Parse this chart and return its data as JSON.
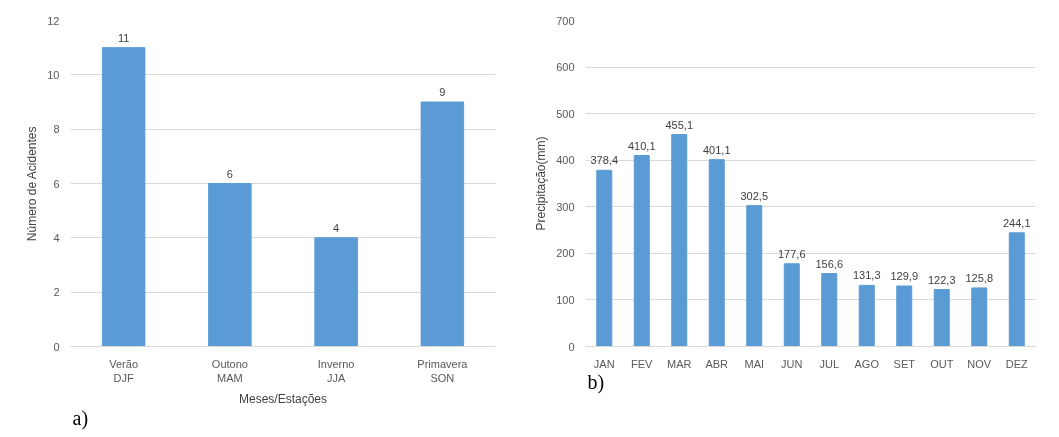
{
  "chart_data": [
    {
      "type": "bar",
      "categories": [
        "Verão\nDJF",
        "Outono\nMAM",
        "Inverno\nJJA",
        "Primavera\nSON"
      ],
      "values": [
        11,
        6,
        4,
        9
      ],
      "color": "#5b9bd5",
      "xlabel": "Meses/Estações",
      "ylabel": "Número de Acidentes",
      "ylim": [
        0,
        12
      ],
      "yticks": [
        0,
        2,
        4,
        6,
        8,
        10,
        12
      ],
      "grid": "y",
      "data_labels": true,
      "annotations": [
        "a)"
      ]
    },
    {
      "type": "bar",
      "categories": [
        "JAN",
        "FEV",
        "MAR",
        "ABR",
        "MAI",
        "JUN",
        "JUL",
        "AGO",
        "SET",
        "OUT",
        "NOV",
        "DEZ"
      ],
      "values": [
        378.4,
        410.1,
        455.1,
        401.1,
        302.5,
        177.6,
        156.6,
        131.3,
        129.9,
        122.3,
        125.8,
        244.1
      ],
      "value_labels": [
        "378,4",
        "410,1",
        "455,1",
        "401,1",
        "302,5",
        "177,6",
        "156,6",
        "131,3",
        "129,9",
        "122,3",
        "125,8",
        "244,1"
      ],
      "color": "#5b9bd5",
      "ylabel": "Precipitação(mm)",
      "ylim": [
        0,
        700
      ],
      "yticks": [
        0,
        100,
        200,
        300,
        400,
        500,
        600,
        700
      ],
      "grid": "y",
      "annotations": [
        "b)"
      ]
    }
  ]
}
